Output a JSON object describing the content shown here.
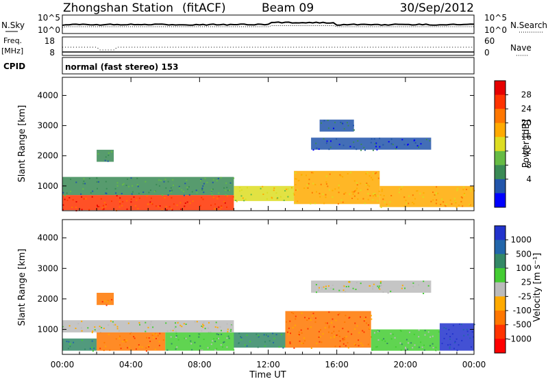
{
  "header": {
    "station": "Zhongshan Station",
    "mode": "(fitACF)",
    "beam": "Beam 09",
    "date": "30/Sep/2012"
  },
  "noise_panel": {
    "left_label": "N.Sky",
    "left_ticks": [
      "10^5",
      "10^0"
    ],
    "right_ticks": [
      "10^5",
      "10^0"
    ],
    "right_label": "N.Search"
  },
  "freq_panel": {
    "left_label_1": "Freq.",
    "left_label_2": "[MHz]",
    "left_ticks": [
      "18",
      "8"
    ],
    "right_ticks": [
      "60",
      "0"
    ],
    "right_label": "Nave"
  },
  "cpid_panel": {
    "label": "CPID",
    "value": "normal (fast stereo) 153"
  },
  "power_panel": {
    "ylabel": "Slant Range [km]",
    "colorbar_label": "Power [dB]",
    "colorbar_ticks": [
      "28",
      "24",
      "20",
      "16",
      "12",
      "8",
      "4"
    ],
    "colorbar_colors": [
      "#e60000",
      "#ff3300",
      "#ff7700",
      "#ffaa00",
      "#dddd22",
      "#66bb44",
      "#3a8a55",
      "#2255aa",
      "#0000ff"
    ]
  },
  "velocity_panel": {
    "ylabel": "Slant Range [km]",
    "colorbar_label": "Velocity [m s⁻¹]",
    "colorbar_ticks": [
      "1000",
      "500",
      "100",
      "25",
      "-25",
      "-100",
      "-500",
      "-1000"
    ],
    "colorbar_colors": [
      "#2233cc",
      "#2266aa",
      "#338866",
      "#44cc33",
      "#bbbbbb",
      "#ffaa00",
      "#ff7700",
      "#ff3300",
      "#ff0000"
    ]
  },
  "xaxis": {
    "label": "Time UT",
    "ticks": [
      "00:00",
      "04:00",
      "08:00",
      "12:00",
      "16:00",
      "20:00",
      "00:00"
    ]
  },
  "chart_data": [
    {
      "type": "heatmap",
      "title": "Power",
      "xlabel": "Time UT",
      "ylabel": "Slant Range [km]",
      "xlim": [
        0,
        24
      ],
      "ylim": [
        180,
        4600
      ],
      "colorbar": "Power [dB]",
      "color_range": [
        0,
        32
      ],
      "regions": [
        {
          "t0": 0,
          "t1": 10,
          "r0": 200,
          "r1": 700,
          "power": 30
        },
        {
          "t0": 0,
          "t1": 10,
          "r0": 700,
          "r1": 1300,
          "power": 9
        },
        {
          "t0": 2,
          "t1": 3,
          "r0": 1800,
          "r1": 2200,
          "power": 10
        },
        {
          "t0": 10,
          "t1": 13.5,
          "r0": 500,
          "r1": 1000,
          "power": 18
        },
        {
          "t0": 13.5,
          "t1": 18.5,
          "r0": 400,
          "r1": 1500,
          "power": 22
        },
        {
          "t0": 14.5,
          "t1": 21.5,
          "r0": 2200,
          "r1": 2600,
          "power": 6
        },
        {
          "t0": 18.5,
          "t1": 24,
          "r0": 300,
          "r1": 1000,
          "power": 22
        },
        {
          "t0": 15,
          "t1": 17,
          "r0": 2800,
          "r1": 3200,
          "power": 6
        }
      ]
    },
    {
      "type": "heatmap",
      "title": "Velocity",
      "xlabel": "Time UT",
      "ylabel": "Slant Range [km]",
      "xlim": [
        0,
        24
      ],
      "ylim": [
        180,
        4600
      ],
      "colorbar": "Velocity [m s⁻¹]",
      "regions": [
        {
          "t0": 0,
          "t1": 2,
          "r0": 300,
          "r1": 700,
          "velocity": 150
        },
        {
          "t0": 0,
          "t1": 10,
          "r0": 900,
          "r1": 1300,
          "velocity": 0
        },
        {
          "t0": 2,
          "t1": 6,
          "r0": 300,
          "r1": 900,
          "velocity": -200
        },
        {
          "t0": 2,
          "t1": 3,
          "r0": 1800,
          "r1": 2200,
          "velocity": -200
        },
        {
          "t0": 6,
          "t1": 10,
          "r0": 300,
          "r1": 900,
          "velocity": 60
        },
        {
          "t0": 10,
          "t1": 13,
          "r0": 400,
          "r1": 900,
          "velocity": 150
        },
        {
          "t0": 13,
          "t1": 18,
          "r0": 400,
          "r1": 1600,
          "velocity": -300
        },
        {
          "t0": 14.5,
          "t1": 21.5,
          "r0": 2200,
          "r1": 2600,
          "velocity": 0
        },
        {
          "t0": 18,
          "t1": 22,
          "r0": 300,
          "r1": 1000,
          "velocity": 80
        },
        {
          "t0": 22,
          "t1": 24,
          "r0": 300,
          "r1": 1200,
          "velocity": 800
        }
      ]
    }
  ]
}
